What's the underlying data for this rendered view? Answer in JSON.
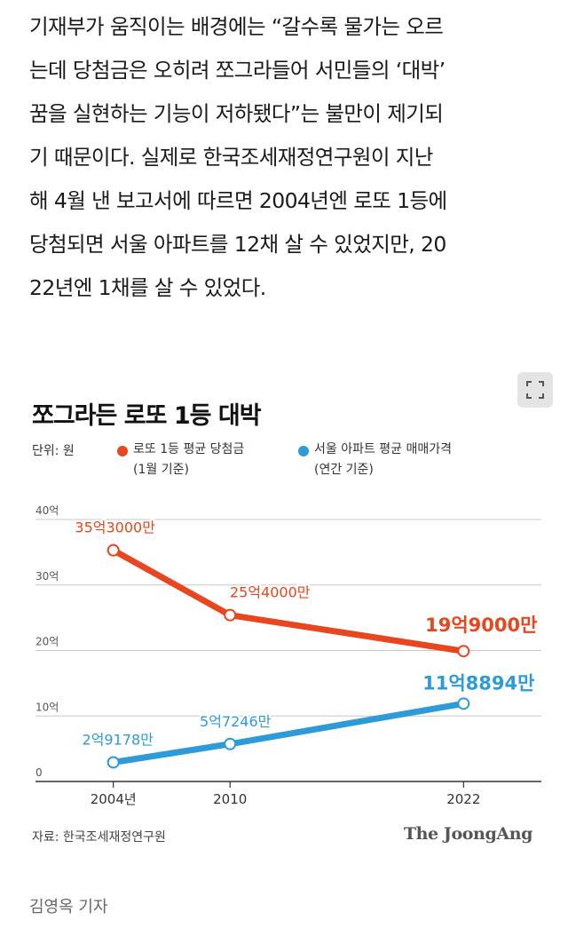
{
  "article": {
    "lines": [
      "기재부가 움직이는 배경에는 “갈수록 물가는 오르",
      "는데 당첨금은 오히려 쪼그라들어 서민들의 ‘대박’",
      "꿈을 실현하는 기능이 저하됐다”는 불만이 제기되",
      "기 때문이다. 실제로 한국조세재정연구원이 지난",
      "해 4월 낸 보고서에 따르면 2004년엔 로또 1등에",
      "당첨되면 서울 아파트를 12채 살 수 있었지만, 20",
      "22년엔 1채를 살 수 있었다."
    ]
  },
  "graphic": {
    "expand_icon": "expand-icon",
    "title": "쪼그라든 로또 1등 대박",
    "unit": "단위: 원",
    "source": "자료: 한국조세재정연구원",
    "brand": "The JoongAng"
  },
  "chart_data": {
    "type": "line",
    "title": "쪼그라든 로또 1등 대박",
    "unit": "단위: 원",
    "categories": [
      "2004년",
      "2010",
      "2022"
    ],
    "x": [
      2004,
      2010,
      2022
    ],
    "xlim": [
      2000,
      2026
    ],
    "ylim": [
      0,
      40
    ],
    "yticks": [
      0,
      10,
      20,
      30,
      40
    ],
    "ytick_labels": [
      "0",
      "10억",
      "20억",
      "30억",
      "40억"
    ],
    "grid": true,
    "series": [
      {
        "name": "로또 1등 평균 당첨금",
        "note": "(1월 기준)",
        "color": "#e8461e",
        "values": [
          35.3,
          25.4,
          19.9
        ],
        "labels": [
          "35억3000만",
          "25억4000만",
          "19억9000만"
        ]
      },
      {
        "name": "서울 아파트 평균 매매가격",
        "note": "(연간 기준)",
        "color": "#2d9bd8",
        "values": [
          2.9178,
          5.7246,
          11.8894
        ],
        "labels": [
          "2억9178만",
          "5억7246만",
          "11억8894만"
        ]
      }
    ]
  },
  "byline": "김영옥 기자"
}
